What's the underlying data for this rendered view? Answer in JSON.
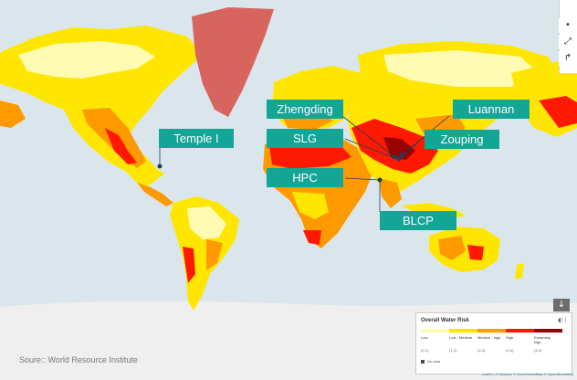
{
  "map": {
    "source": "Soure:: World Resource Institute",
    "attribution": "Leaflet | © Mapbox © OpenStreetMap © OpenStreetMap",
    "colors": {
      "ocean": "#dbe6ec",
      "low": "#fffbb2",
      "low_medium": "#ffe600",
      "medium_high": "#ff9900",
      "high": "#ff1900",
      "extremely_high": "#990000",
      "no_data": "#4a4a4a",
      "callout": "#13a596",
      "marker": "#1f3e5e",
      "greenland": "#d8645e"
    }
  },
  "controls": {
    "button_1": "•",
    "button_2": "⤢",
    "button_3": "↱",
    "download": "↓"
  },
  "callouts": {
    "zhengding": "Zhengding",
    "luannan": "Luannan",
    "slg": "SLG",
    "zouping": "Zouping",
    "temple": "Temple I",
    "hpc": "HPC",
    "blcp": "BLCP"
  },
  "legend": {
    "title": "Overall Water Risk",
    "icons": "◐  i",
    "categories": [
      {
        "label": "Low",
        "range": "(0-1)"
      },
      {
        "label": "Low - Medium",
        "range": "(1-2)"
      },
      {
        "label": "Medium - high",
        "range": "(2-3)"
      },
      {
        "label": "High",
        "range": "(3-4)"
      },
      {
        "label": "Extremely high",
        "range": "(4-5)"
      }
    ],
    "no_data": "No data"
  }
}
